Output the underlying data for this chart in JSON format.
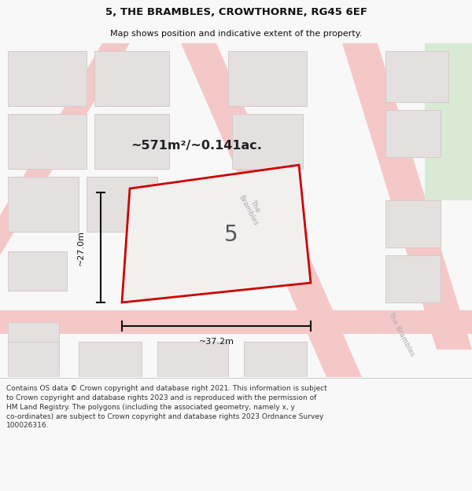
{
  "title": "5, THE BRAMBLES, CROWTHORNE, RG45 6EF",
  "subtitle": "Map shows position and indicative extent of the property.",
  "area_text": "~571m²/~0.141ac.",
  "number_label": "5",
  "width_label": "~37.2m",
  "height_label": "~27.0m",
  "footer_line1": "Contains OS data © Crown copyright and database right 2021. This information is subject",
  "footer_line2": "to Crown copyright and database rights 2023 and is reproduced with the permission of",
  "footer_line3": "HM Land Registry. The polygons (including the associated geometry, namely x, y",
  "footer_line4": "co-ordinates) are subject to Crown copyright and database rights 2023 Ordnance Survey",
  "footer_line5": "100026316.",
  "bg_color": "#f8f8f8",
  "map_bg": "#f2efef",
  "plot_fill": "#f2efef",
  "plot_edge": "#cc0000",
  "road_color": "#f5c8c8",
  "road_edge": "#e8a8a8",
  "block_fill": "#e4e0e0",
  "block_edge": "#d8c8c8",
  "footer_bg": "#ffffff",
  "green_fill": "#d8ead4",
  "title_sep_color": "#cccccc",
  "dim_color": "#111111",
  "road_label_color": "#aaaaaa",
  "number_color": "#555555",
  "area_color": "#222222"
}
